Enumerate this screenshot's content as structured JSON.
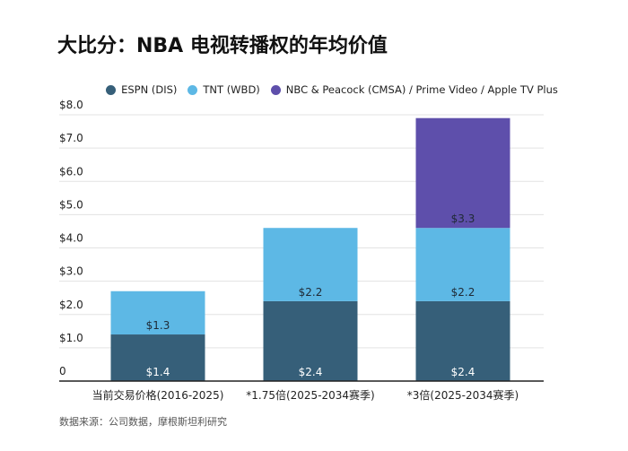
{
  "title": "大比分：NBA 电视转播权的年均价值",
  "footer": "数据来源：公司数据，摩根斯坦利研究",
  "chart_data": {
    "type": "bar",
    "stacked": true,
    "categories": [
      "当前交易价格(2016-2025)",
      "*1.75倍(2025-2034赛季)",
      "*3倍(2025-2034赛季)"
    ],
    "series": [
      {
        "name": "ESPN (DIS)",
        "values": [
          1.4,
          2.4,
          2.4
        ],
        "labels": [
          "$1.4",
          "$2.4",
          "$2.4"
        ],
        "color": "#365f79"
      },
      {
        "name": "TNT (WBD)",
        "values": [
          1.3,
          2.2,
          2.2
        ],
        "labels": [
          "$1.3",
          "$2.2",
          "$2.2"
        ],
        "color": "#5db8e5"
      },
      {
        "name": "NBC & Peacock (CMSA) / Prime Video / Apple TV Plus",
        "values": [
          0,
          0,
          3.3
        ],
        "labels": [
          "",
          "",
          "$3.3"
        ],
        "color": "#5e4fab"
      }
    ],
    "yticks": [
      "0",
      "$1.0",
      "$2.0",
      "$3.0",
      "$4.0",
      "$5.0",
      "$6.0",
      "$7.0",
      "$8.0"
    ],
    "ylim": [
      0,
      8
    ],
    "grid": true,
    "legend": "top"
  }
}
